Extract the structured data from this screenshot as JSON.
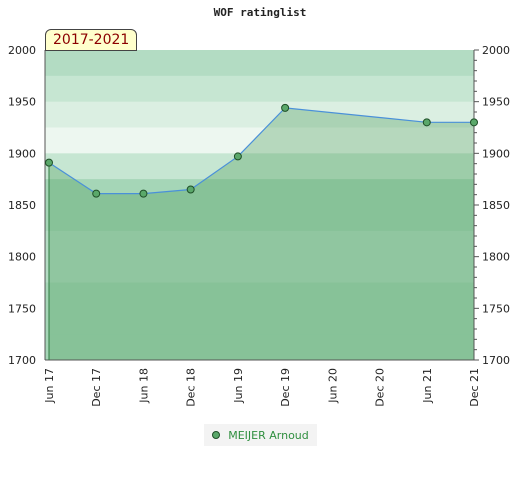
{
  "chart_data": {
    "type": "area",
    "title": "WOF ratinglist",
    "period_label": "2017-2021",
    "x_ticks": [
      "Jun 17",
      "Dec 17",
      "Jun 18",
      "Dec 18",
      "Jun 19",
      "Dec 19",
      "Jun 20",
      "Dec 20",
      "Jun 21",
      "Dec 21"
    ],
    "y_ticks": [
      2000,
      1950,
      1900,
      1850,
      1800,
      1750,
      1700
    ],
    "ylim": [
      1700,
      2000
    ],
    "series": [
      {
        "name": "MEIJER Arnoud",
        "points": [
          {
            "x": "Jun 17",
            "y": 1891
          },
          {
            "x": "Dec 17",
            "y": 1861
          },
          {
            "x": "Jun 18",
            "y": 1861
          },
          {
            "x": "Dec 18",
            "y": 1865
          },
          {
            "x": "Jun 19",
            "y": 1897
          },
          {
            "x": "Dec 19",
            "y": 1944
          },
          {
            "x": "Jun 21",
            "y": 1930
          },
          {
            "x": "Dec 21",
            "y": 1930
          }
        ]
      }
    ],
    "grid": true,
    "legend_position": "bottom"
  },
  "colors": {
    "line": "#4a90d9",
    "area_fill": "#4f9f5f",
    "marker_fill": "#5aa86a",
    "marker_stroke": "#1f4f28",
    "band_colors": [
      "#b3dcc3",
      "#c6e6d2",
      "#dbefe2",
      "#edf7f0",
      "#c6e6d2",
      "#a5d6b7",
      "#a5d6b7",
      "#b3dcc3",
      "#b3dcc3",
      "#a5d6b7",
      "#a5d6b7",
      "#a5d6b7"
    ]
  }
}
